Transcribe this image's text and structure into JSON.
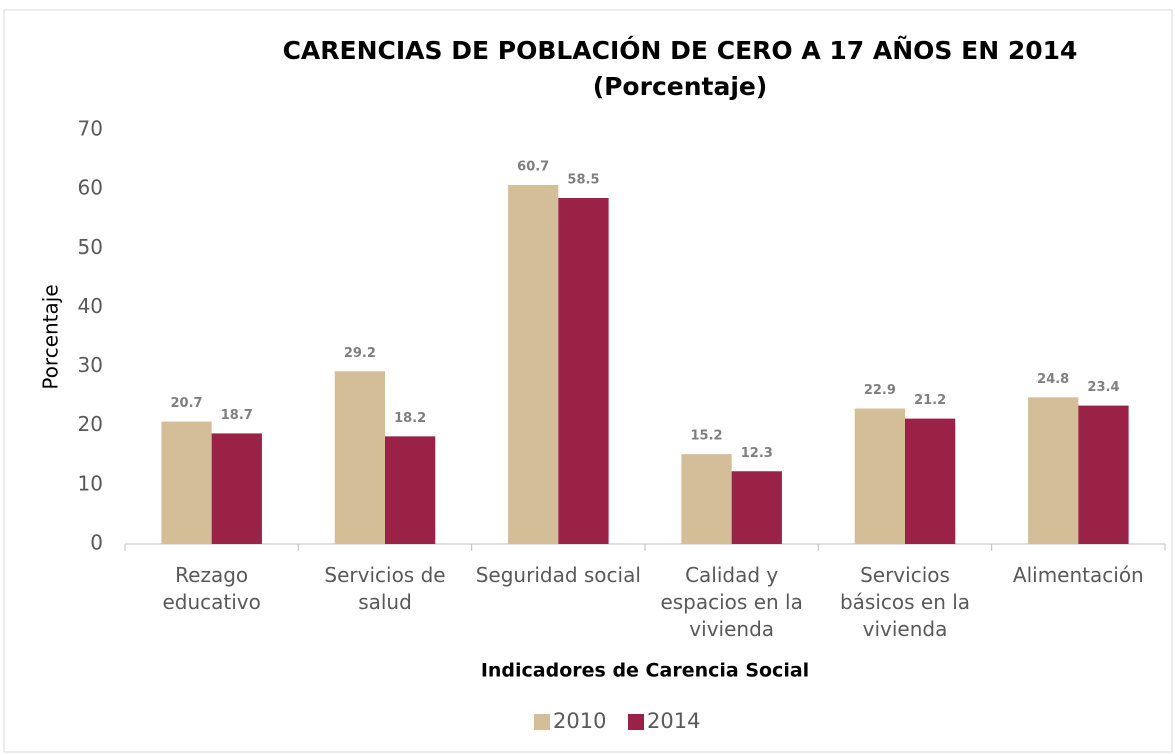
{
  "chart_data": {
    "type": "bar",
    "title": "CARENCIAS DE POBLACIÓN DE CERO A 17 AÑOS EN 2014",
    "subtitle": "(Porcentaje)",
    "x_label": "Indicadores de Carencia Social",
    "y_label": "Porcentaje",
    "categories": [
      "Rezago educativo",
      "Servicios de salud",
      "Seguridad social",
      "Calidad y espacios en la vivienda",
      "Servicios básicos en la vivienda",
      "Alimentación"
    ],
    "series": [
      {
        "name": "2010",
        "color": "#d4be97",
        "values": [
          20.7,
          29.2,
          60.7,
          15.2,
          22.9,
          24.8
        ]
      },
      {
        "name": "2014",
        "color": "#9b2247",
        "values": [
          18.7,
          18.2,
          58.5,
          12.3,
          21.2,
          23.4
        ]
      }
    ],
    "ylim": [
      0,
      70
    ],
    "yticks": [
      0,
      10,
      20,
      30,
      40,
      50,
      60,
      70
    ],
    "grid": false,
    "legend": "bottom"
  }
}
